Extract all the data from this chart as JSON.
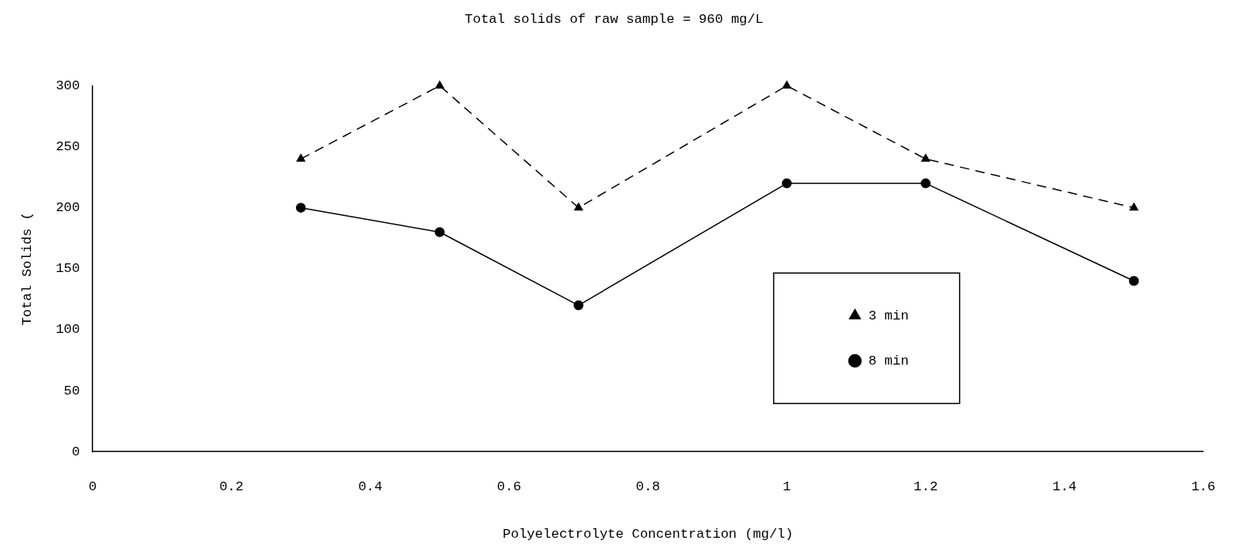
{
  "chart_data": {
    "type": "line",
    "title": "Total solids of raw sample = 960 mg/L",
    "xlabel": "Polyelectrolyte Concentration (mg/l)",
    "ylabel": "Total Solids (",
    "x": [
      0.3,
      0.5,
      0.7,
      1,
      1.2,
      1.5
    ],
    "series": [
      {
        "name": "3 min",
        "color": "#000000",
        "values": [
          240,
          300,
          200,
          300,
          240,
          200
        ],
        "line_style": "dashed",
        "marker": "triangle"
      },
      {
        "name": "8 min",
        "color": "#000000",
        "values": [
          200,
          180,
          120,
          220,
          220,
          140
        ],
        "line_style": "solid",
        "marker": "circle"
      }
    ],
    "xlim": [
      0,
      1.6
    ],
    "xticks": [
      0,
      0.2,
      0.4,
      0.6,
      0.8,
      1,
      1.2,
      1.4,
      1.6
    ],
    "ylim": [
      0,
      300
    ],
    "yticks": [
      0,
      50,
      100,
      150,
      200,
      250,
      300
    ],
    "grid": false,
    "legend": "bottom right"
  }
}
